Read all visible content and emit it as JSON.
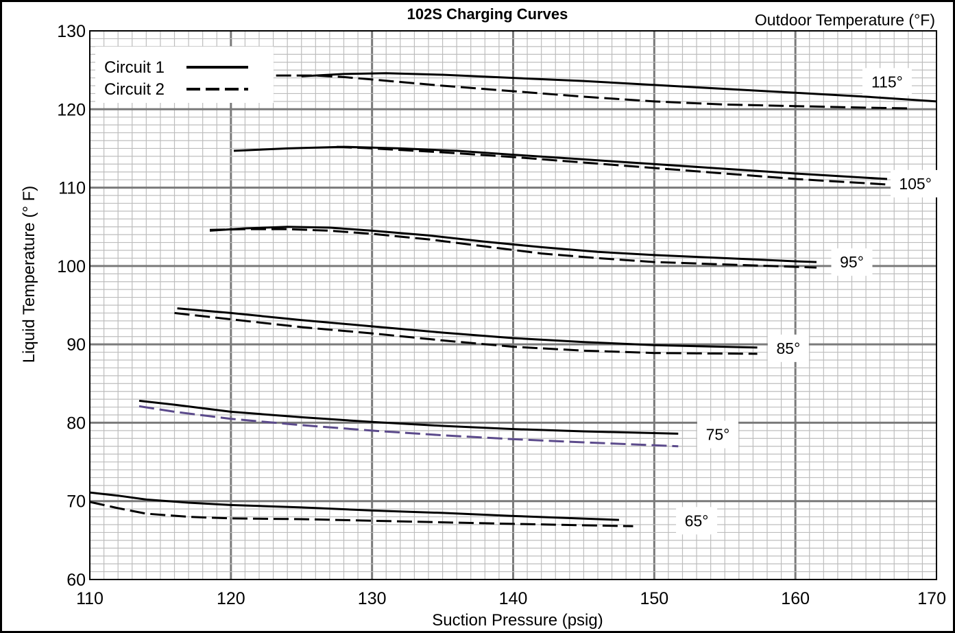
{
  "chart_data": {
    "type": "line",
    "title": "102S Charging Curves",
    "legend_title": "Outdoor Temperature (°F)",
    "xlabel": "Suction Pressure (psig)",
    "ylabel": "Liquid Temperature (° F)",
    "xlim": [
      110,
      170
    ],
    "ylim": [
      60,
      130
    ],
    "x_ticks": [
      "110",
      "120",
      "130",
      "140",
      "150",
      "160",
      "170"
    ],
    "y_ticks": [
      "60",
      "70",
      "80",
      "90",
      "100",
      "110",
      "120",
      "130"
    ],
    "grid": true,
    "legend": {
      "placement": "top-left",
      "items": [
        {
          "label": "Circuit 1",
          "style": "solid"
        },
        {
          "label": "Circuit 2",
          "style": "dashed"
        }
      ]
    },
    "curve_labels": [
      {
        "text": "115°",
        "x": 166.5,
        "y": 123.5
      },
      {
        "text": "105°",
        "x": 168.5,
        "y": 110.5
      },
      {
        "text": "95°",
        "x": 164,
        "y": 100.5
      },
      {
        "text": "85°",
        "x": 159.5,
        "y": 89.5
      },
      {
        "text": "75°",
        "x": 154.5,
        "y": 78.5
      },
      {
        "text": "65°",
        "x": 153,
        "y": 67.5
      }
    ],
    "series": [
      {
        "group": "115°",
        "circuit": "Circuit 1",
        "style": "solid",
        "color": "#000000",
        "x": [
          125,
          128,
          131,
          135,
          140,
          145,
          150,
          155,
          160,
          165,
          170
        ],
        "y": [
          124.2,
          124.5,
          124.6,
          124.4,
          124.0,
          123.6,
          123.1,
          122.6,
          122.1,
          121.6,
          121.0
        ]
      },
      {
        "group": "115°",
        "circuit": "Circuit 2",
        "style": "dashed",
        "color": "#000000",
        "x": [
          123.2,
          126,
          128,
          130,
          135,
          140,
          145,
          150,
          155,
          160,
          165,
          168.2
        ],
        "y": [
          124.3,
          124.3,
          124.1,
          123.8,
          123.0,
          122.3,
          121.6,
          121.0,
          120.6,
          120.4,
          120.2,
          120.1
        ]
      },
      {
        "group": "105°",
        "circuit": "Circuit 1",
        "style": "solid",
        "color": "#000000",
        "x": [
          120.2,
          124,
          128,
          132,
          136,
          140,
          145,
          150,
          155,
          160,
          166.5
        ],
        "y": [
          114.7,
          115.0,
          115.2,
          115.0,
          114.7,
          114.2,
          113.6,
          113.0,
          112.4,
          111.8,
          111.1
        ]
      },
      {
        "group": "105°",
        "circuit": "Circuit 2",
        "style": "dashed",
        "color": "#000000",
        "x": [
          127.5,
          130,
          135,
          140,
          145,
          150,
          155,
          160,
          166.5
        ],
        "y": [
          115.2,
          115.0,
          114.5,
          113.9,
          113.2,
          112.5,
          111.8,
          111.1,
          110.4
        ]
      },
      {
        "group": "95°",
        "circuit": "Circuit 1",
        "style": "solid",
        "color": "#000000",
        "x": [
          118.5,
          121,
          124,
          127,
          130,
          134,
          138,
          142,
          146,
          150,
          155,
          160,
          161.5
        ],
        "y": [
          104.5,
          104.8,
          105.0,
          104.9,
          104.5,
          103.9,
          103.1,
          102.4,
          101.8,
          101.4,
          101.0,
          100.6,
          100.5
        ]
      },
      {
        "group": "95°",
        "circuit": "Circuit 2",
        "style": "dashed",
        "color": "#000000",
        "x": [
          118.5,
          121,
          124,
          127,
          130,
          134,
          138,
          142,
          146,
          150,
          155,
          161.5
        ],
        "y": [
          104.6,
          104.7,
          104.7,
          104.5,
          104.1,
          103.4,
          102.5,
          101.6,
          101.0,
          100.5,
          100.2,
          99.8
        ]
      },
      {
        "group": "85°",
        "circuit": "Circuit 1",
        "style": "solid",
        "color": "#000000",
        "x": [
          116.2,
          120,
          125,
          130,
          135,
          140,
          145,
          150,
          157.3
        ],
        "y": [
          94.6,
          94.0,
          93.1,
          92.3,
          91.5,
          90.8,
          90.3,
          89.9,
          89.6
        ]
      },
      {
        "group": "85°",
        "circuit": "Circuit 2",
        "style": "dashed",
        "color": "#000000",
        "x": [
          116,
          120,
          125,
          130,
          135,
          140,
          145,
          150,
          157.3
        ],
        "y": [
          94.0,
          93.2,
          92.2,
          91.4,
          90.5,
          89.7,
          89.2,
          88.9,
          88.8
        ]
      },
      {
        "group": "75°",
        "circuit": "Circuit 1",
        "style": "solid",
        "color": "#000000",
        "x": [
          113.5,
          116,
          120,
          125,
          130,
          135,
          140,
          145,
          151.7
        ],
        "y": [
          82.8,
          82.3,
          81.4,
          80.7,
          80.1,
          79.6,
          79.2,
          78.9,
          78.6
        ]
      },
      {
        "group": "75°",
        "circuit": "Circuit 2",
        "style": "dashed",
        "color": "#5b4a8b",
        "x": [
          113.5,
          116,
          120,
          125,
          130,
          135,
          140,
          145,
          151.7
        ],
        "y": [
          82.1,
          81.4,
          80.5,
          79.7,
          79.0,
          78.4,
          77.9,
          77.5,
          77.0
        ]
      },
      {
        "group": "65°",
        "circuit": "Circuit 1",
        "style": "solid",
        "color": "#000000",
        "x": [
          110,
          112,
          114,
          117,
          120,
          125,
          130,
          135,
          140,
          147.5
        ],
        "y": [
          71.1,
          70.7,
          70.2,
          69.8,
          69.5,
          69.2,
          68.8,
          68.5,
          68.1,
          67.6
        ]
      },
      {
        "group": "65°",
        "circuit": "Circuit 2",
        "style": "dashed",
        "color": "#000000",
        "x": [
          110,
          112,
          114,
          117,
          120,
          125,
          130,
          135,
          140,
          148.5
        ],
        "y": [
          69.9,
          69.1,
          68.4,
          68.0,
          67.8,
          67.7,
          67.5,
          67.3,
          67.1,
          66.8
        ]
      }
    ]
  }
}
